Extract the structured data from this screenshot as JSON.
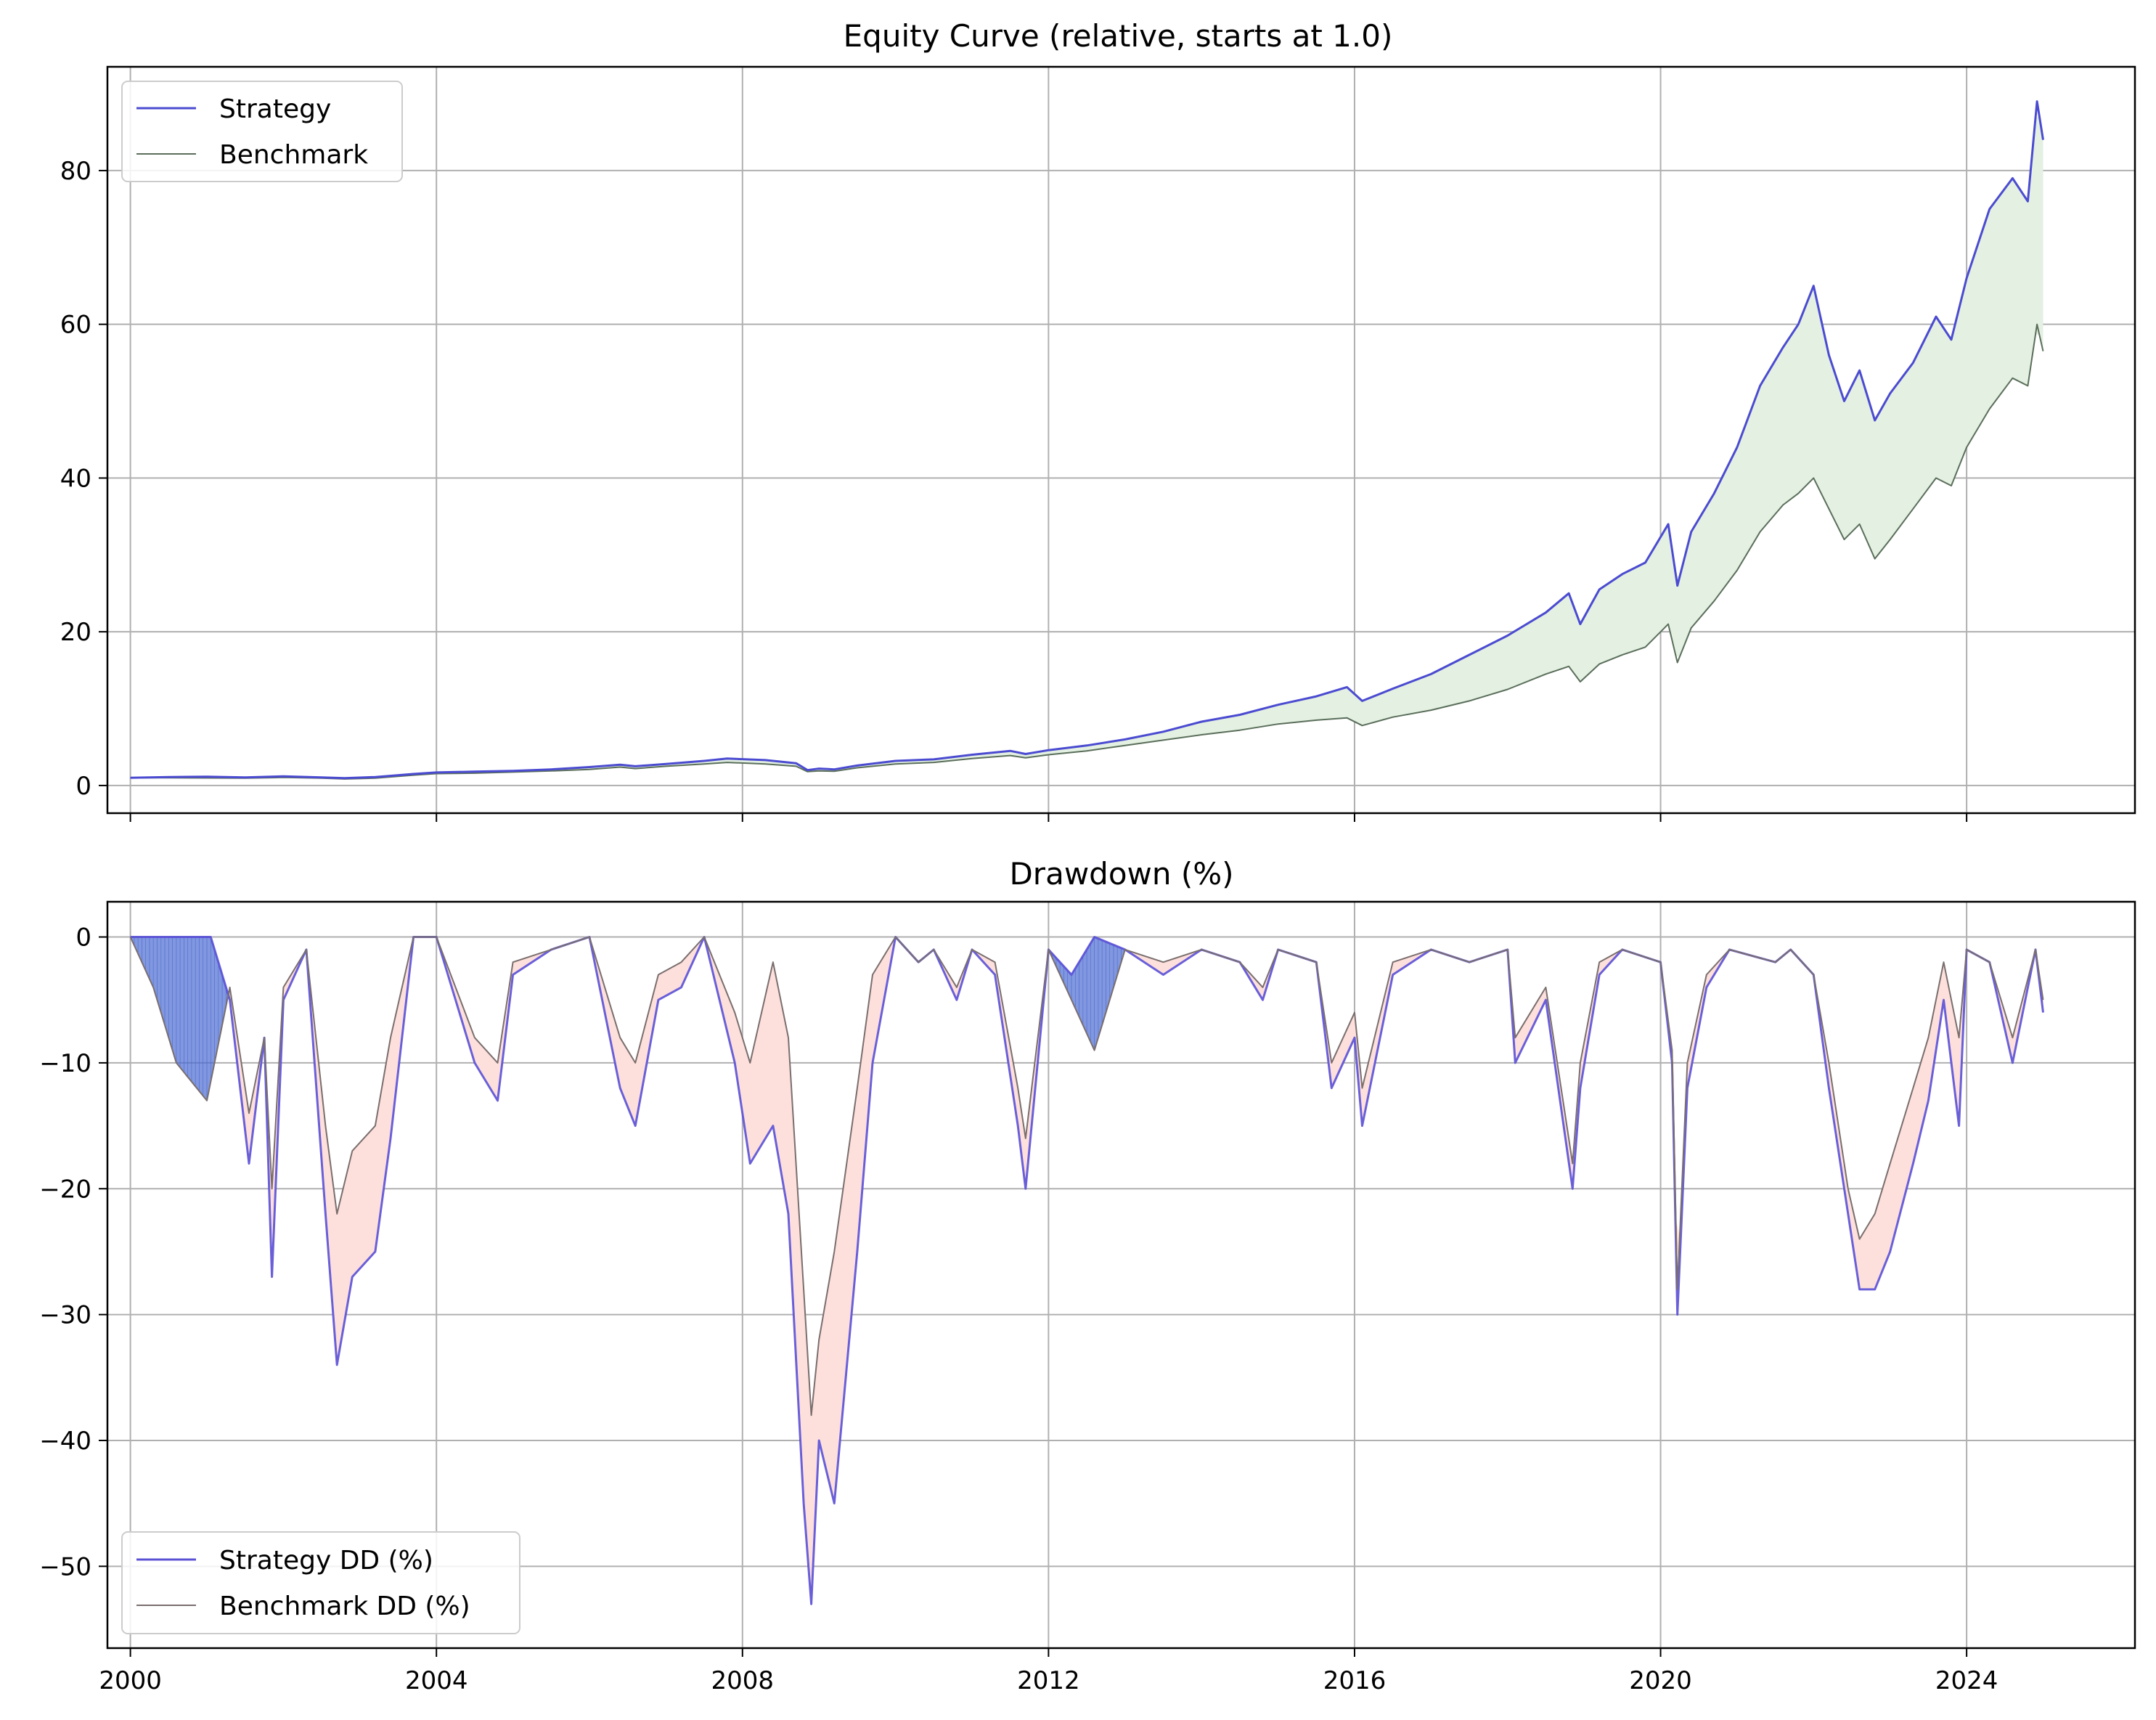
{
  "chart_data": [
    {
      "type": "line",
      "title": "Equity Curve (relative, starts at 1.0)",
      "xlabel": "",
      "ylabel": "",
      "xlim": [
        1999.7,
        2026.2
      ],
      "ylim": [
        -3.6,
        93.5
      ],
      "x_ticks": [
        2000,
        2004,
        2008,
        2012,
        2016,
        2020,
        2024
      ],
      "x_tick_labels": [
        "",
        "",
        "",
        "",
        "",
        "",
        ""
      ],
      "y_ticks": [
        0,
        20,
        40,
        60,
        80
      ],
      "y_tick_labels": [
        "0",
        "20",
        "40",
        "60",
        "80"
      ],
      "grid": true,
      "legend_position": "upper-left",
      "fill_between": {
        "color": "#e3f0e2",
        "note": "area between Strategy and Benchmark"
      },
      "series": [
        {
          "name": "Strategy",
          "color": "#4b4bd1",
          "x": [
            2000.0,
            2000.5,
            2001.0,
            2001.5,
            2002.0,
            2002.5,
            2002.8,
            2003.2,
            2003.7,
            2004.0,
            2004.5,
            2005.0,
            2005.5,
            2006.0,
            2006.4,
            2006.6,
            2007.0,
            2007.5,
            2007.8,
            2008.3,
            2008.7,
            2008.85,
            2009.0,
            2009.2,
            2009.5,
            2010.0,
            2010.5,
            2011.0,
            2011.5,
            2011.7,
            2012.0,
            2012.5,
            2013.0,
            2013.5,
            2014.0,
            2014.5,
            2015.0,
            2015.5,
            2015.9,
            2016.1,
            2016.5,
            2017.0,
            2017.5,
            2018.0,
            2018.5,
            2018.8,
            2018.95,
            2019.2,
            2019.5,
            2019.8,
            2020.1,
            2020.22,
            2020.4,
            2020.7,
            2021.0,
            2021.3,
            2021.6,
            2021.8,
            2022.0,
            2022.2,
            2022.4,
            2022.6,
            2022.8,
            2023.0,
            2023.3,
            2023.6,
            2023.8,
            2024.0,
            2024.3,
            2024.6,
            2024.8,
            2024.92,
            2025.0
          ],
          "y": [
            1.0,
            1.1,
            1.15,
            1.05,
            1.2,
            1.05,
            0.95,
            1.1,
            1.5,
            1.7,
            1.8,
            1.9,
            2.1,
            2.4,
            2.7,
            2.5,
            2.8,
            3.2,
            3.5,
            3.3,
            2.9,
            2.0,
            2.2,
            2.1,
            2.6,
            3.2,
            3.4,
            4.0,
            4.5,
            4.1,
            4.6,
            5.2,
            6.0,
            7.0,
            8.3,
            9.2,
            10.5,
            11.6,
            12.8,
            11.0,
            12.6,
            14.5,
            17.0,
            19.5,
            22.5,
            25.0,
            21.0,
            25.5,
            27.5,
            29.0,
            34.0,
            26.0,
            33.0,
            38.0,
            44.0,
            52.0,
            57.0,
            60.0,
            65.0,
            56.0,
            50.0,
            54.0,
            47.5,
            51.0,
            55.0,
            61.0,
            58.0,
            66.0,
            75.0,
            79.0,
            76.0,
            89.0,
            84.0
          ]
        },
        {
          "name": "Benchmark",
          "color": "#5a6e5a",
          "x": [
            2000.0,
            2000.5,
            2001.0,
            2001.5,
            2002.0,
            2002.5,
            2002.8,
            2003.2,
            2003.7,
            2004.0,
            2004.5,
            2005.0,
            2005.5,
            2006.0,
            2006.4,
            2006.6,
            2007.0,
            2007.5,
            2007.8,
            2008.3,
            2008.7,
            2008.85,
            2009.0,
            2009.2,
            2009.5,
            2010.0,
            2010.5,
            2011.0,
            2011.5,
            2011.7,
            2012.0,
            2012.5,
            2013.0,
            2013.5,
            2014.0,
            2014.5,
            2015.0,
            2015.5,
            2015.9,
            2016.1,
            2016.5,
            2017.0,
            2017.5,
            2018.0,
            2018.5,
            2018.8,
            2018.95,
            2019.2,
            2019.5,
            2019.8,
            2020.1,
            2020.22,
            2020.4,
            2020.7,
            2021.0,
            2021.3,
            2021.6,
            2021.8,
            2022.0,
            2022.2,
            2022.4,
            2022.6,
            2022.8,
            2023.0,
            2023.3,
            2023.6,
            2023.8,
            2024.0,
            2024.3,
            2024.6,
            2024.8,
            2024.92,
            2025.0
          ],
          "y": [
            1.0,
            1.0,
            0.98,
            0.95,
            1.05,
            0.95,
            0.85,
            0.95,
            1.35,
            1.55,
            1.6,
            1.75,
            1.9,
            2.1,
            2.4,
            2.2,
            2.5,
            2.8,
            3.0,
            2.8,
            2.5,
            1.8,
            1.9,
            1.85,
            2.3,
            2.8,
            3.0,
            3.5,
            3.9,
            3.6,
            4.0,
            4.5,
            5.2,
            5.9,
            6.6,
            7.2,
            8.0,
            8.5,
            8.8,
            7.8,
            8.9,
            9.8,
            11.0,
            12.5,
            14.5,
            15.5,
            13.5,
            15.8,
            17.0,
            18.0,
            21.0,
            16.0,
            20.5,
            24.0,
            28.0,
            33.0,
            36.5,
            38.0,
            40.0,
            36.0,
            32.0,
            34.0,
            29.5,
            32.0,
            36.0,
            40.0,
            39.0,
            44.0,
            49.0,
            53.0,
            52.0,
            60.0,
            56.5
          ]
        }
      ]
    },
    {
      "type": "area",
      "title": "Drawdown (%)",
      "xlabel": "",
      "ylabel": "",
      "xlim": [
        1999.7,
        2026.2
      ],
      "ylim": [
        -56.5,
        2.8
      ],
      "x_ticks": [
        2000,
        2004,
        2008,
        2012,
        2016,
        2020,
        2024
      ],
      "x_tick_labels": [
        "2000",
        "2004",
        "2008",
        "2012",
        "2016",
        "2020",
        "2024"
      ],
      "y_ticks": [
        0,
        -10,
        -20,
        -30,
        -40,
        -50
      ],
      "y_tick_labels": [
        "0",
        "−10",
        "−20",
        "−30",
        "−40",
        "−50"
      ],
      "grid": true,
      "legend_position": "lower-left",
      "fill_between_colors": {
        "strategy_worse": "#fde0dc",
        "strategy_better": "#4b6bd1"
      },
      "series": [
        {
          "name": "Strategy DD (%)",
          "color": "#5a50d6",
          "x": [
            2000.0,
            2001.05,
            2001.3,
            2001.55,
            2001.75,
            2001.85,
            2002.0,
            2002.3,
            2002.55,
            2002.7,
            2002.9,
            2003.2,
            2003.4,
            2003.7,
            2004.0,
            2004.5,
            2004.8,
            2005.0,
            2005.5,
            2006.0,
            2006.4,
            2006.6,
            2006.9,
            2007.2,
            2007.5,
            2007.9,
            2008.1,
            2008.4,
            2008.6,
            2008.8,
            2008.9,
            2009.0,
            2009.2,
            2009.5,
            2009.7,
            2010.0,
            2010.3,
            2010.5,
            2010.8,
            2011.0,
            2011.3,
            2011.6,
            2011.7,
            2012.0,
            2012.3,
            2012.6,
            2013.0,
            2013.5,
            2014.0,
            2014.5,
            2014.8,
            2015.0,
            2015.5,
            2015.7,
            2016.0,
            2016.1,
            2016.5,
            2017.0,
            2017.5,
            2018.0,
            2018.1,
            2018.5,
            2018.85,
            2018.95,
            2019.2,
            2019.5,
            2020.0,
            2020.15,
            2020.22,
            2020.35,
            2020.6,
            2020.9,
            2021.5,
            2021.7,
            2022.0,
            2022.2,
            2022.45,
            2022.6,
            2022.8,
            2023.0,
            2023.3,
            2023.5,
            2023.7,
            2023.9,
            2024.0,
            2024.3,
            2024.6,
            2024.9,
            2025.0
          ],
          "y": [
            0,
            0,
            -5,
            -18,
            -8,
            -27,
            -5,
            -1,
            -22,
            -34,
            -27,
            -25,
            -16,
            0,
            0,
            -10,
            -13,
            -3,
            -1,
            0,
            -12,
            -15,
            -5,
            -4,
            0,
            -10,
            -18,
            -15,
            -22,
            -45,
            -53,
            -40,
            -45,
            -25,
            -10,
            0,
            -2,
            -1,
            -5,
            -1,
            -3,
            -15,
            -20,
            -1,
            -3,
            0,
            -1,
            -3,
            -1,
            -2,
            -5,
            -1,
            -2,
            -12,
            -8,
            -15,
            -3,
            -1,
            -2,
            -1,
            -10,
            -5,
            -20,
            -12,
            -3,
            -1,
            -2,
            -10,
            -30,
            -12,
            -4,
            -1,
            -2,
            -1,
            -3,
            -12,
            -22,
            -28,
            -28,
            -25,
            -18,
            -13,
            -5,
            -15,
            -1,
            -2,
            -10,
            -1,
            -6
          ]
        },
        {
          "name": "Benchmark DD (%)",
          "color": "#7a6e6e",
          "x": [
            2000.0,
            2000.3,
            2000.6,
            2001.0,
            2001.3,
            2001.55,
            2001.75,
            2001.85,
            2002.0,
            2002.3,
            2002.55,
            2002.7,
            2002.9,
            2003.2,
            2003.4,
            2003.7,
            2004.0,
            2004.5,
            2004.8,
            2005.0,
            2005.5,
            2006.0,
            2006.4,
            2006.6,
            2006.9,
            2007.2,
            2007.5,
            2007.9,
            2008.1,
            2008.4,
            2008.6,
            2008.8,
            2008.9,
            2009.0,
            2009.2,
            2009.5,
            2009.7,
            2010.0,
            2010.3,
            2010.5,
            2010.8,
            2011.0,
            2011.3,
            2011.6,
            2011.7,
            2012.0,
            2012.3,
            2012.6,
            2013.0,
            2013.5,
            2014.0,
            2014.5,
            2014.8,
            2015.0,
            2015.5,
            2015.7,
            2016.0,
            2016.1,
            2016.5,
            2017.0,
            2017.5,
            2018.0,
            2018.1,
            2018.5,
            2018.85,
            2018.95,
            2019.2,
            2019.5,
            2020.0,
            2020.15,
            2020.22,
            2020.35,
            2020.6,
            2020.9,
            2021.5,
            2021.7,
            2022.0,
            2022.2,
            2022.45,
            2022.6,
            2022.8,
            2023.0,
            2023.3,
            2023.5,
            2023.7,
            2023.9,
            2024.0,
            2024.3,
            2024.6,
            2024.9,
            2025.0
          ],
          "y": [
            0,
            -4,
            -10,
            -13,
            -4,
            -14,
            -8,
            -20,
            -4,
            -1,
            -15,
            -22,
            -17,
            -15,
            -8,
            0,
            0,
            -8,
            -10,
            -2,
            -1,
            0,
            -8,
            -10,
            -3,
            -2,
            0,
            -6,
            -10,
            -2,
            -8,
            -28,
            -38,
            -32,
            -25,
            -12,
            -3,
            0,
            -2,
            -1,
            -4,
            -1,
            -2,
            -12,
            -16,
            -1,
            -5,
            -9,
            -1,
            -2,
            -1,
            -2,
            -4,
            -1,
            -2,
            -10,
            -6,
            -12,
            -2,
            -1,
            -2,
            -1,
            -8,
            -4,
            -18,
            -10,
            -2,
            -1,
            -2,
            -9,
            -28,
            -10,
            -3,
            -1,
            -2,
            -1,
            -3,
            -10,
            -20,
            -24,
            -22,
            -18,
            -12,
            -8,
            -2,
            -8,
            -1,
            -2,
            -8,
            -1,
            -5
          ]
        }
      ]
    }
  ]
}
